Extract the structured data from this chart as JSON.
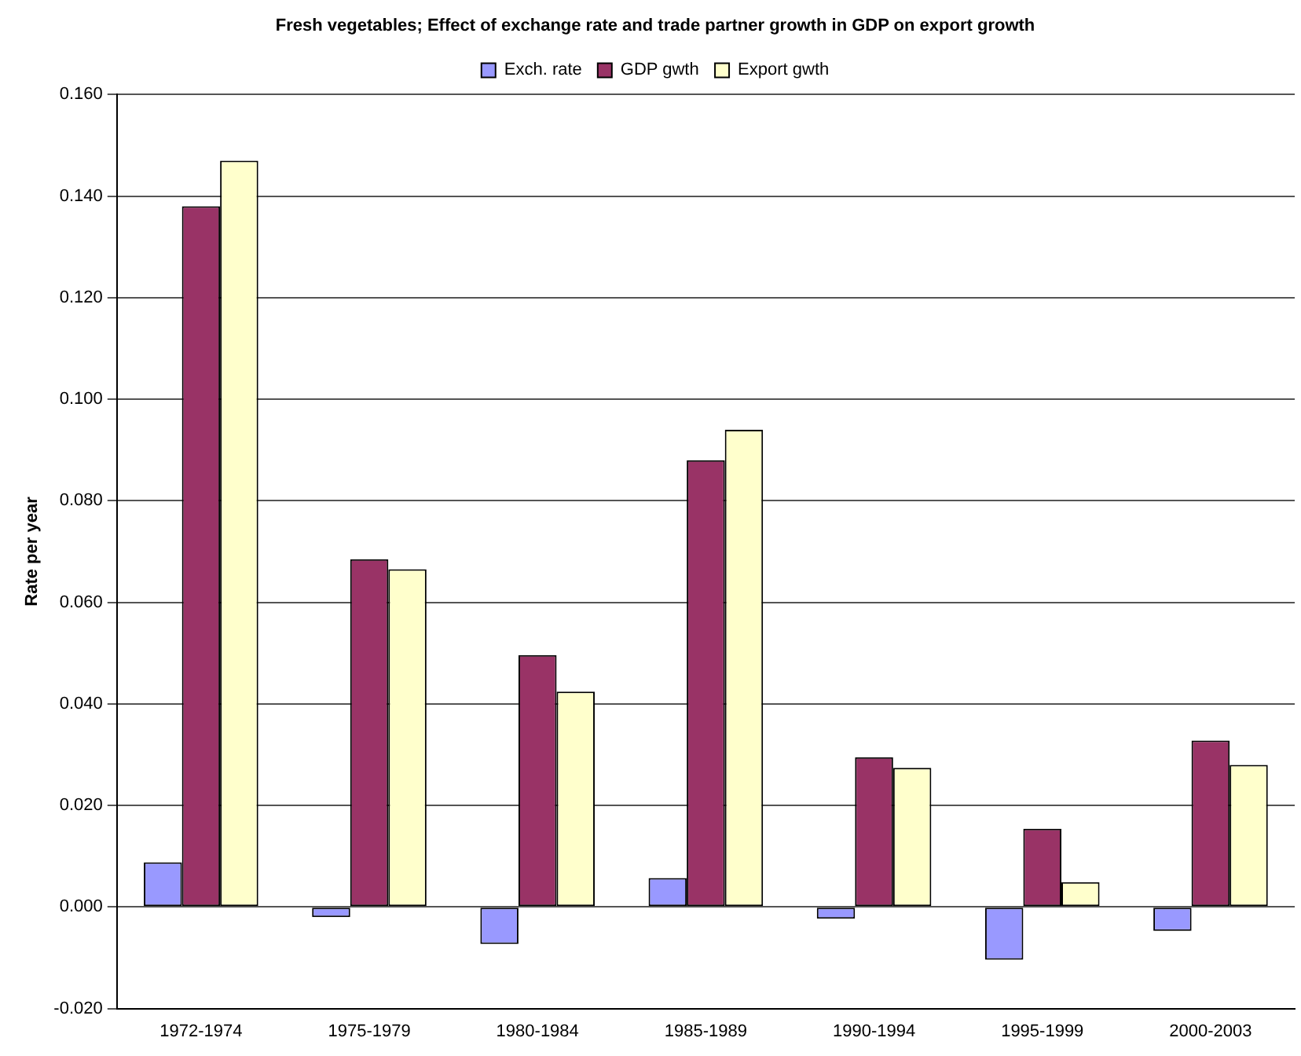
{
  "chart_data": {
    "type": "bar",
    "title": "Fresh vegetables; Effect of exchange rate and trade partner growth in GDP on export growth",
    "ylabel": "Rate per year",
    "categories": [
      "1972-1974",
      "1975-1979",
      "1980-1984",
      "1985-1989",
      "1990-1994",
      "1995-1999",
      "2000-2003"
    ],
    "series": [
      {
        "name": "Exch. rate",
        "color": "#9999ff",
        "values": [
          0.0088,
          -0.002,
          -0.0073,
          0.0057,
          -0.0023,
          -0.0104,
          -0.0047
        ]
      },
      {
        "name": "GDP gwth",
        "color": "#993366",
        "values": [
          0.138,
          0.0685,
          0.0496,
          0.088,
          0.0295,
          0.0154,
          0.0328
        ]
      },
      {
        "name": "Export gwth",
        "color": "#ffffcc",
        "values": [
          0.147,
          0.0665,
          0.0424,
          0.094,
          0.0274,
          0.0049,
          0.028
        ]
      }
    ],
    "ylim": [
      -0.02,
      0.16
    ],
    "yticks": [
      {
        "value": -0.02,
        "label": "-0.020"
      },
      {
        "value": 0,
        "label": "0.000"
      },
      {
        "value": 0.02,
        "label": "0.020"
      },
      {
        "value": 0.04,
        "label": "0.040"
      },
      {
        "value": 0.06,
        "label": "0.060"
      },
      {
        "value": 0.08,
        "label": "0.080"
      },
      {
        "value": 0.1,
        "label": "0.100"
      },
      {
        "value": 0.12,
        "label": "0.120"
      },
      {
        "value": 0.14,
        "label": "0.140"
      },
      {
        "value": 0.16,
        "label": "0.160"
      }
    ],
    "grid": "y",
    "legend": "top"
  }
}
